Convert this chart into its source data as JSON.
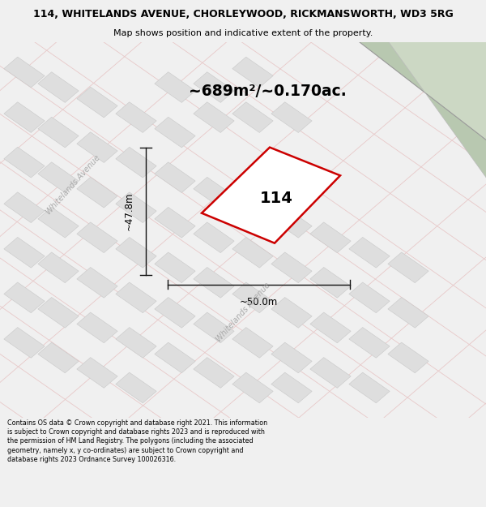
{
  "title_line1": "114, WHITELANDS AVENUE, CHORLEYWOOD, RICKMANSWORTH, WD3 5RG",
  "title_line2": "Map shows position and indicative extent of the property.",
  "footer_text": "Contains OS data © Crown copyright and database right 2021. This information is subject to Crown copyright and database rights 2023 and is reproduced with the permission of HM Land Registry. The polygons (including the associated geometry, namely x, y co-ordinates) are subject to Crown copyright and database rights 2023 Ordnance Survey 100026316.",
  "area_text": "~689m²/~0.170ac.",
  "plot_label": "114",
  "dim_height": "~47.8m",
  "dim_width": "~50.0m",
  "street_label": "Whitelands Avenue",
  "bg_color": "#f0f0f0",
  "map_bg": "#f8f8f8",
  "plot_color": "#cc0000",
  "green_band_color": "#c5d5bc",
  "block_color": "#dedede",
  "block_edge_color": "#c8c8c8",
  "road_line_color": "#e8c8c8",
  "dim_line_color": "#111111",
  "street_label_color": "#aaaaaa",
  "title_fontsize": 9.0,
  "subtitle_fontsize": 8.0,
  "footer_fontsize": 5.8,
  "area_fontsize": 13.5,
  "plot_label_fontsize": 14,
  "dim_fontsize": 8.5,
  "street_fontsize": 7.0
}
